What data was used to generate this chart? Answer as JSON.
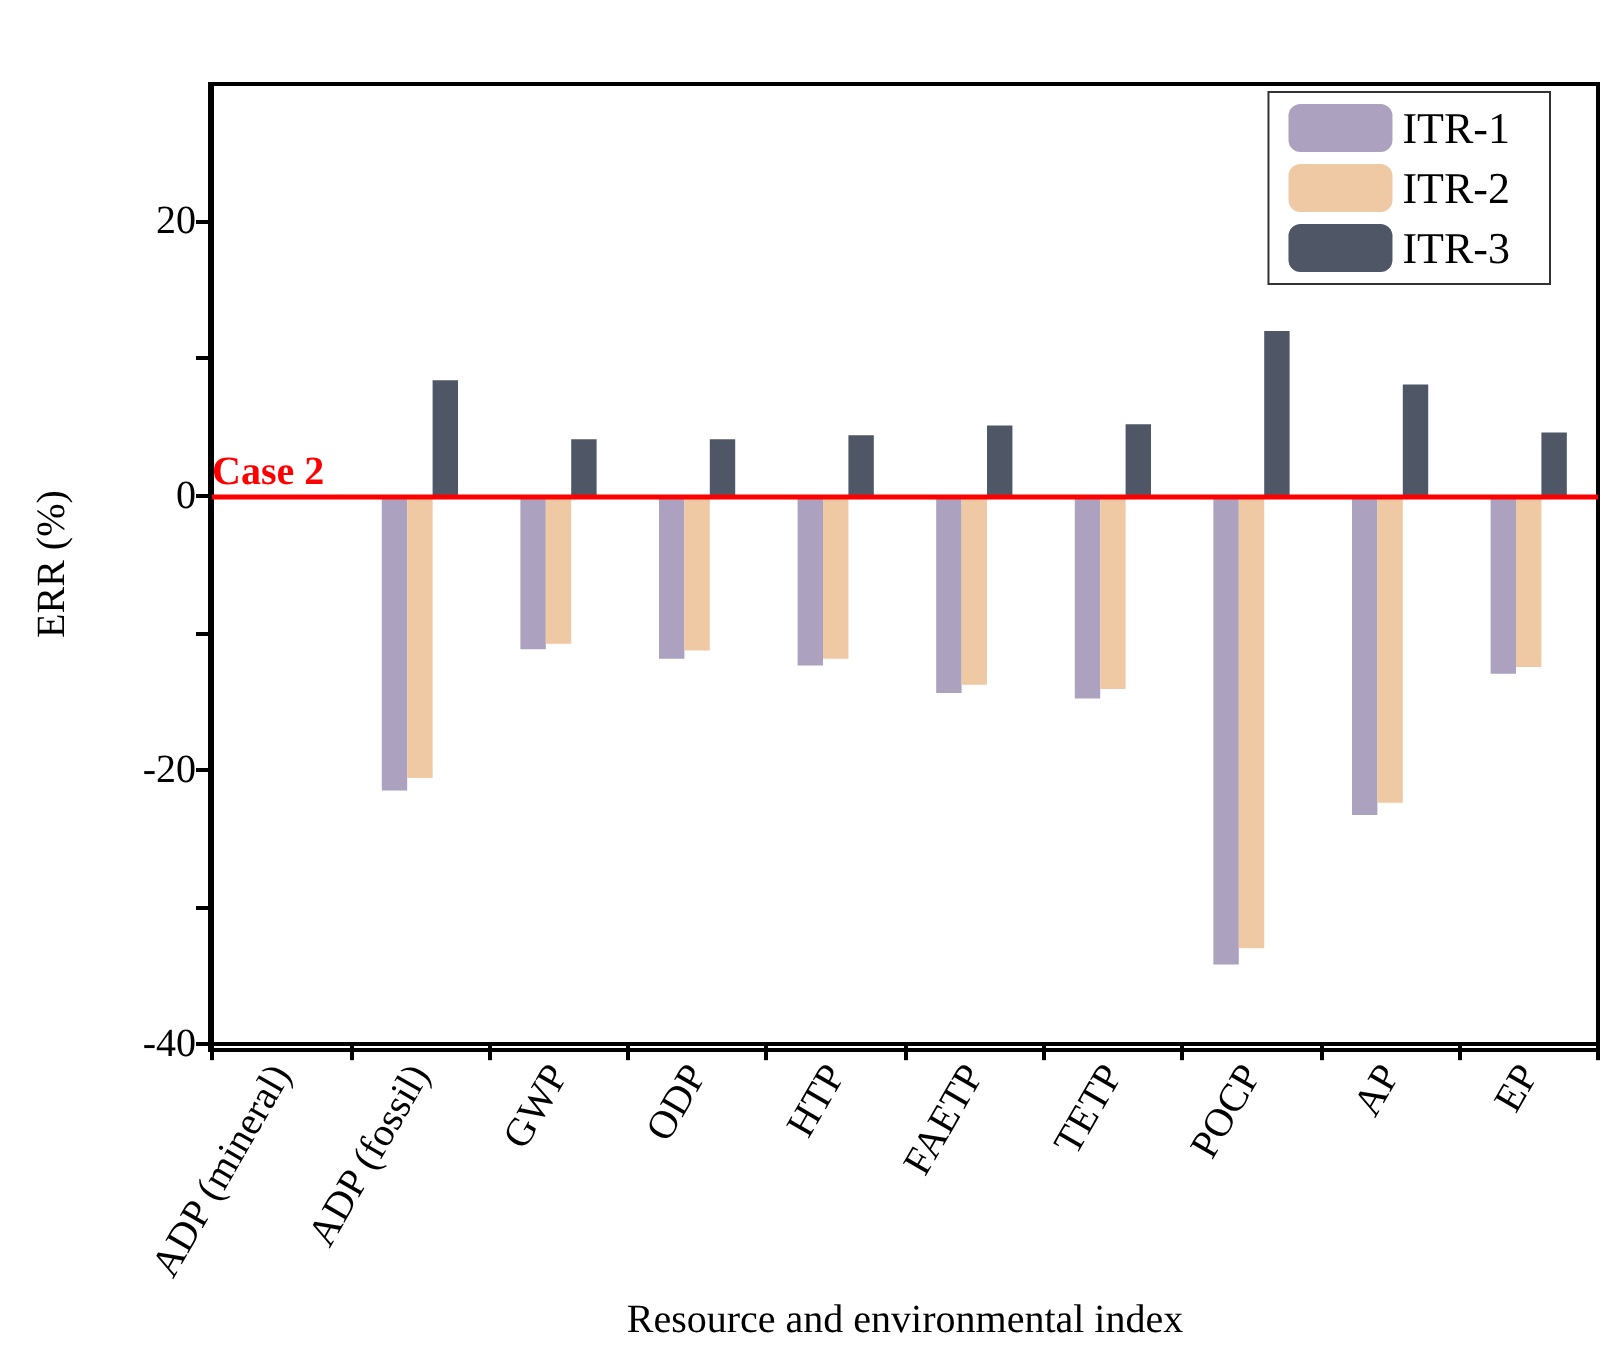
{
  "chart_data": {
    "type": "bar",
    "xlabel": "Resource and environmental index",
    "ylabel": "ERR (%)",
    "categories": [
      "ADP (mineral)",
      "ADP (fossil)",
      "GWP",
      "ODP",
      "HTP",
      "FAETP",
      "TETP",
      "POCP",
      "AP",
      "EP"
    ],
    "series": [
      {
        "name": "ITR-1",
        "color": "#aca2bf",
        "values": [
          null,
          -21.5,
          -11.2,
          -11.9,
          -12.4,
          -14.4,
          -14.8,
          -34.2,
          -23.3,
          -13.0
        ]
      },
      {
        "name": "ITR-2",
        "color": "#efc9a3",
        "values": [
          null,
          -20.6,
          -10.8,
          -11.3,
          -11.9,
          -13.8,
          -14.1,
          -33.0,
          -22.4,
          -12.5
        ]
      },
      {
        "name": "ITR-3",
        "color": "#4f5666",
        "values": [
          null,
          8.4,
          4.1,
          4.1,
          4.4,
          5.1,
          5.2,
          12.0,
          8.1,
          4.6
        ]
      }
    ],
    "ylim": [
      -40,
      30
    ],
    "yticks": [
      -40,
      {
        "value": -30,
        "label": null
      },
      -20,
      {
        "value": -10,
        "label": null
      },
      0,
      {
        "value": 10,
        "label": null
      },
      20
    ],
    "ref_lines": [
      {
        "axis": "y",
        "value": 0,
        "label": "Case 2",
        "color": "#ff0000"
      }
    ],
    "grid": false,
    "legend": "top right"
  }
}
